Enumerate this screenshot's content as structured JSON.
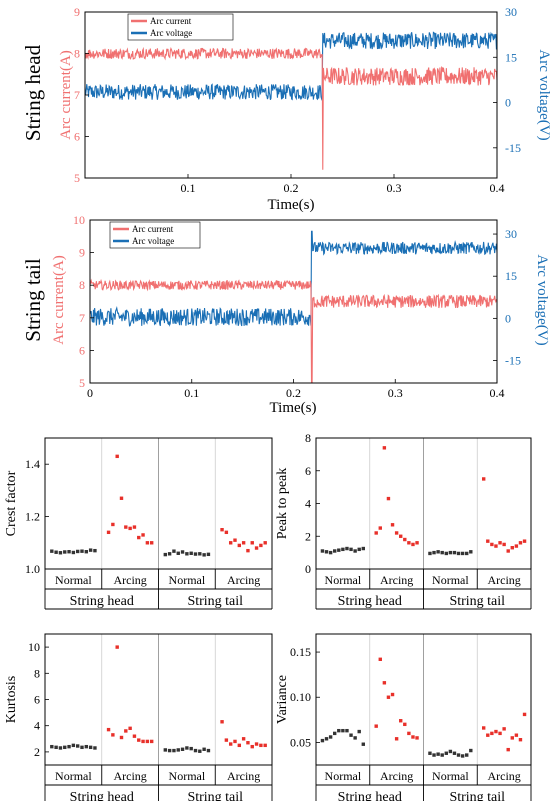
{
  "colors": {
    "current": "#F07070",
    "voltage": "#1A6FB5",
    "normal": "#333333",
    "arcing": "#E8302A",
    "axis": "#000000",
    "divider": "#CCCCCC"
  },
  "chart_data": [
    {
      "type": "line",
      "row_label": "String head",
      "xlabel": "Time(s)",
      "ylabel_left": "Arc current(A)",
      "ylabel_right": "Arc voltage(V)",
      "xlim": [
        0,
        0.4
      ],
      "x_ticks": [
        "0.1",
        "0.2",
        "0.3",
        "0.4"
      ],
      "x_tick_values": [
        0.1,
        0.2,
        0.3,
        0.4
      ],
      "ylim_left": [
        5,
        9
      ],
      "y_ticks_left": [
        "5",
        "6",
        "7",
        "8",
        "9"
      ],
      "ylim_right": [
        -25,
        30
      ],
      "y_ticks_right": [
        "-15",
        "0",
        "15",
        "30"
      ],
      "y_tick_values_right": [
        -15,
        0,
        15,
        30
      ],
      "legend": [
        "Arc current",
        "Arc voltage"
      ],
      "legend_placement": "top-left",
      "switch_time": 0.231,
      "series": [
        {
          "name": "Arc current",
          "axis": "left",
          "before_mean": 8.0,
          "before_amp": 0.13,
          "after_mean": 7.45,
          "after_amp": 0.22,
          "dip_value": 5.2
        },
        {
          "name": "Arc voltage",
          "axis": "right",
          "before_mean": 3.5,
          "before_amp": 2.6,
          "after_mean": 20.5,
          "after_amp": 2.8,
          "spike_value": 23
        }
      ]
    },
    {
      "type": "line",
      "row_label": "String tail",
      "xlabel": "Time(s)",
      "ylabel_left": "Arc current(A)",
      "ylabel_right": "Arc voltage(V)",
      "xlim": [
        0,
        0.4
      ],
      "x_ticks": [
        "0",
        "0.1",
        "0.2",
        "0.3",
        "0.4"
      ],
      "x_tick_values": [
        0,
        0.1,
        0.2,
        0.3,
        0.4
      ],
      "ylim_left": [
        5,
        10
      ],
      "y_ticks_left": [
        "5",
        "6",
        "7",
        "8",
        "9",
        "10"
      ],
      "ylim_right": [
        -23,
        35
      ],
      "y_ticks_right": [
        "-15",
        "0",
        "15",
        "30"
      ],
      "y_tick_values_right": [
        -15,
        0,
        15,
        30
      ],
      "legend": [
        "Arc current",
        "Arc voltage"
      ],
      "legend_placement": "top-left",
      "switch_time": 0.218,
      "series": [
        {
          "name": "Arc current",
          "axis": "left",
          "before_mean": 8.0,
          "before_amp": 0.14,
          "after_mean": 7.5,
          "after_amp": 0.2,
          "dip_value": 5.0
        },
        {
          "name": "Arc voltage",
          "axis": "right",
          "before_mean": 0.5,
          "before_amp": 3.2,
          "after_mean": 25,
          "after_amp": 2.2,
          "spike_value": 31
        }
      ]
    },
    {
      "type": "scatter",
      "ylabel": "Crest factor",
      "ylim": [
        1.0,
        1.5
      ],
      "y_ticks": [
        "1.0",
        "1.2",
        "1.4"
      ],
      "y_tick_values": [
        1.0,
        1.2,
        1.4
      ],
      "group_labels": [
        "Normal",
        "Arcing",
        "Normal",
        "Arcing"
      ],
      "section_labels": [
        "String head",
        "String tail"
      ],
      "groups": [
        {
          "name": "Normal",
          "values": [
            1.068,
            1.064,
            1.062,
            1.065,
            1.066,
            1.063,
            1.067,
            1.068,
            1.066,
            1.072,
            1.07
          ]
        },
        {
          "name": "Arcing",
          "values": [
            1.14,
            1.17,
            1.43,
            1.27,
            1.16,
            1.155,
            1.16,
            1.12,
            1.13,
            1.1,
            1.1
          ]
        },
        {
          "name": "Normal",
          "values": [
            1.055,
            1.058,
            1.068,
            1.06,
            1.065,
            1.058,
            1.06,
            1.057,
            1.058,
            1.054,
            1.056
          ]
        },
        {
          "name": "Arcing",
          "values": [
            1.15,
            1.14,
            1.1,
            1.11,
            1.09,
            1.1,
            1.07,
            1.1,
            1.08,
            1.09,
            1.1
          ]
        }
      ]
    },
    {
      "type": "scatter",
      "ylabel": "Peak to peak",
      "ylim": [
        0,
        8
      ],
      "y_ticks": [
        "0",
        "2",
        "4",
        "6",
        "8"
      ],
      "y_tick_values": [
        0,
        2,
        4,
        6,
        8
      ],
      "group_labels": [
        "Normal",
        "Arcing",
        "Normal",
        "Arcing"
      ],
      "section_labels": [
        "String head",
        "String tail"
      ],
      "groups": [
        {
          "name": "Normal",
          "values": [
            1.1,
            1.05,
            1.0,
            1.1,
            1.15,
            1.2,
            1.25,
            1.2,
            1.1,
            1.2,
            1.25
          ]
        },
        {
          "name": "Arcing",
          "values": [
            2.2,
            2.5,
            7.4,
            4.3,
            2.7,
            2.2,
            2.0,
            1.8,
            1.6,
            1.5,
            1.6
          ]
        },
        {
          "name": "Normal",
          "values": [
            0.95,
            1.0,
            1.05,
            1.0,
            0.95,
            1.0,
            1.0,
            0.95,
            0.95,
            0.95,
            1.05
          ]
        },
        {
          "name": "Arcing",
          "values": [
            5.5,
            1.7,
            1.5,
            1.4,
            1.6,
            1.5,
            1.1,
            1.3,
            1.4,
            1.6,
            1.7
          ]
        }
      ]
    },
    {
      "type": "scatter",
      "ylabel": "Kurtosis",
      "ylim": [
        1,
        11
      ],
      "y_ticks": [
        "2",
        "4",
        "6",
        "8",
        "10"
      ],
      "y_tick_values": [
        2,
        4,
        6,
        8,
        10
      ],
      "group_labels": [
        "Normal",
        "Arcing",
        "Normal",
        "Arcing"
      ],
      "section_labels": [
        "String head",
        "String tail"
      ],
      "groups": [
        {
          "name": "Normal",
          "values": [
            2.4,
            2.35,
            2.3,
            2.35,
            2.4,
            2.5,
            2.45,
            2.35,
            2.4,
            2.35,
            2.3
          ]
        },
        {
          "name": "Arcing",
          "values": [
            3.7,
            3.3,
            10.0,
            3.1,
            3.6,
            3.8,
            3.2,
            2.9,
            2.8,
            2.8,
            2.8
          ]
        },
        {
          "name": "Normal",
          "values": [
            2.15,
            2.1,
            2.1,
            2.15,
            2.2,
            2.3,
            2.25,
            2.1,
            2.05,
            2.2,
            2.1
          ]
        },
        {
          "name": "Arcing",
          "values": [
            4.3,
            2.9,
            2.6,
            2.8,
            2.5,
            3.0,
            2.7,
            2.4,
            2.6,
            2.5,
            2.5
          ]
        }
      ]
    },
    {
      "type": "scatter",
      "ylabel": "Variance",
      "ylim": [
        0.025,
        0.17
      ],
      "y_ticks": [
        "0.05",
        "0.10",
        "0.15"
      ],
      "y_tick_values": [
        0.05,
        0.1,
        0.15
      ],
      "group_labels": [
        "Normal",
        "Arcing",
        "Normal",
        "Arcing"
      ],
      "section_labels": [
        "String head",
        "String tail"
      ],
      "groups": [
        {
          "name": "Normal",
          "values": [
            0.052,
            0.054,
            0.056,
            0.06,
            0.063,
            0.063,
            0.063,
            0.058,
            0.055,
            0.062,
            0.048
          ]
        },
        {
          "name": "Arcing",
          "values": [
            0.068,
            0.142,
            0.116,
            0.1,
            0.103,
            0.054,
            0.074,
            0.07,
            0.06,
            0.056,
            0.055
          ]
        },
        {
          "name": "Normal",
          "values": [
            0.038,
            0.036,
            0.037,
            0.036,
            0.038,
            0.04,
            0.038,
            0.036,
            0.035,
            0.036,
            0.041
          ]
        },
        {
          "name": "Arcing",
          "values": [
            0.066,
            0.058,
            0.06,
            0.062,
            0.06,
            0.065,
            0.042,
            0.055,
            0.058,
            0.053,
            0.081
          ]
        }
      ]
    }
  ]
}
